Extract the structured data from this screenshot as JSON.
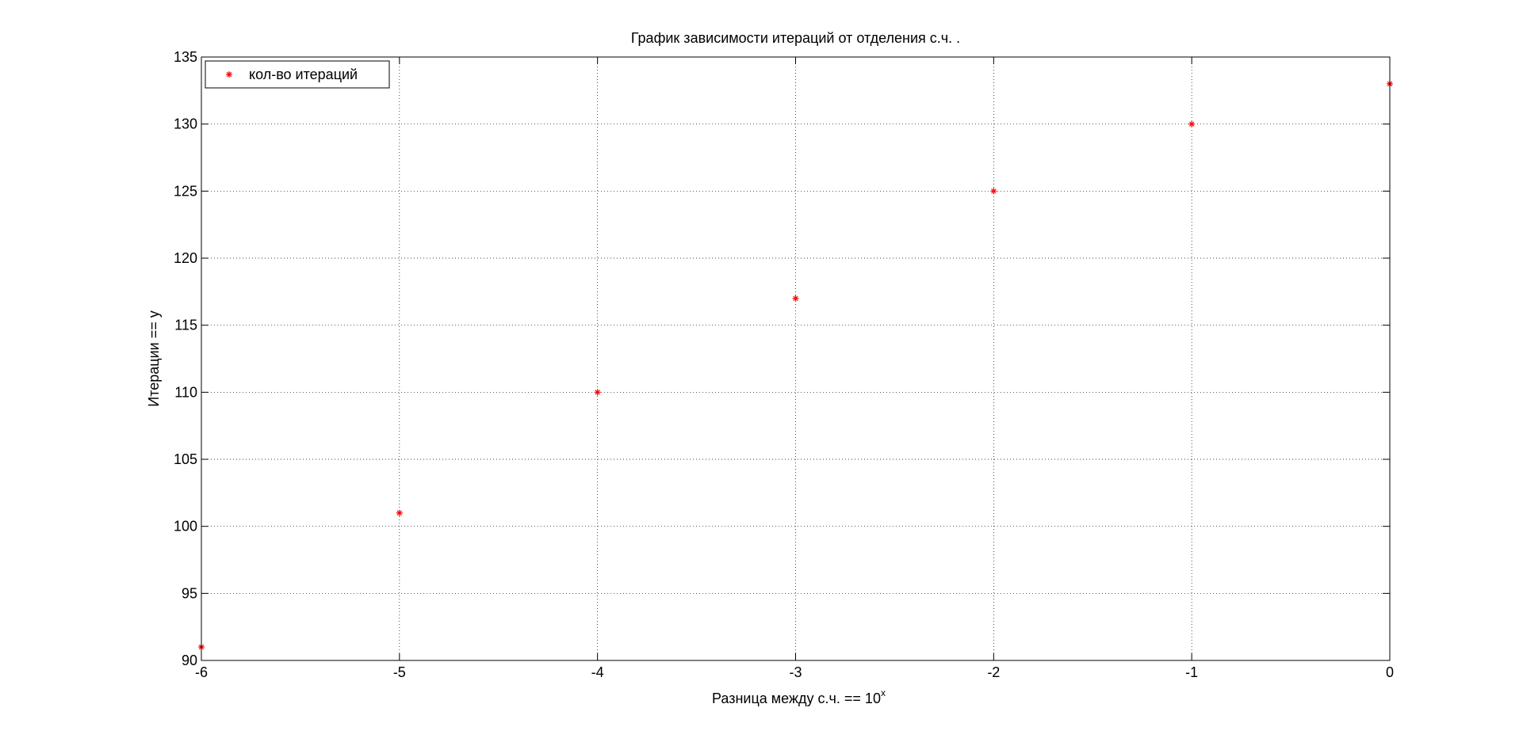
{
  "chart_data": {
    "type": "scatter",
    "title": "График зависимости итераций от отделения с.ч. .",
    "xlabel": "Разница между с.ч.  == 10",
    "xlabel_superscript": "x",
    "ylabel": "Итерации == y",
    "xlim": [
      -6,
      0
    ],
    "ylim": [
      90,
      135
    ],
    "xticks": [
      -6,
      -5,
      -4,
      -3,
      -2,
      -1,
      0
    ],
    "xtick_labels": [
      "-6",
      "-5",
      "-4",
      "-3",
      "-2",
      "-1",
      "0"
    ],
    "yticks": [
      90,
      95,
      100,
      105,
      110,
      115,
      120,
      125,
      130,
      135
    ],
    "ytick_labels": [
      "90",
      "95",
      "100",
      "105",
      "110",
      "115",
      "120",
      "125",
      "130",
      "135"
    ],
    "grid": true,
    "grid_style": "dotted",
    "legend_position": "top-left",
    "series": [
      {
        "name": "кол-во итераций",
        "marker": "*",
        "color": "#ff0000",
        "x": [
          -6,
          -5,
          -4,
          -3,
          -2,
          -1,
          0
        ],
        "y": [
          91,
          101,
          110,
          117,
          125,
          130,
          133
        ]
      }
    ]
  }
}
